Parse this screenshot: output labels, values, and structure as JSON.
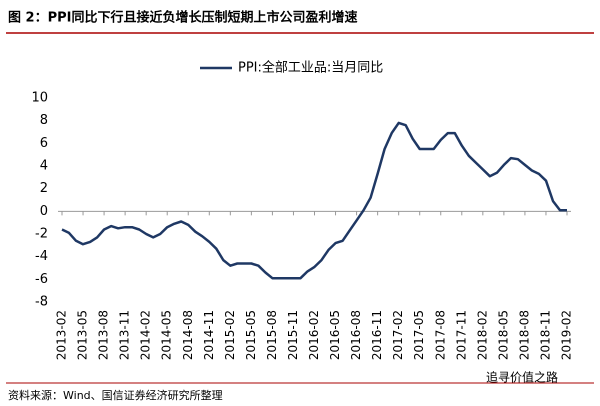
{
  "chart_data": {
    "type": "line",
    "title": "图 2：PPI同比下行且接近负增长压制短期上市公司盈利增速",
    "source": "资料来源：Wind、国信证券经济研究所整理",
    "watermark": "追寻价值之路",
    "categories": [
      "2013-02",
      null,
      null,
      "2013-05",
      null,
      null,
      "2013-08",
      null,
      null,
      "2013-11",
      null,
      null,
      "2014-02",
      null,
      null,
      "2014-05",
      null,
      null,
      "2014-08",
      null,
      null,
      "2014-11",
      null,
      null,
      "2015-02",
      null,
      null,
      "2015-05",
      null,
      null,
      "2015-08",
      null,
      null,
      "2015-11",
      null,
      null,
      "2016-02",
      null,
      null,
      "2016-05",
      null,
      null,
      "2016-08",
      null,
      null,
      "2016-11",
      null,
      null,
      "2017-02",
      null,
      null,
      "2017-05",
      null,
      null,
      "2017-08",
      null,
      null,
      "2017-11",
      null,
      null,
      "2018-02",
      null,
      null,
      "2018-05",
      null,
      null,
      "2018-08",
      null,
      null,
      "2018-11",
      null,
      null,
      "2019-02"
    ],
    "series": [
      {
        "name": "PPI:全部工业品:当月同比",
        "color": "#1f3864",
        "values": [
          -1.6,
          -1.9,
          -2.6,
          -2.9,
          -2.7,
          -2.3,
          -1.6,
          -1.3,
          -1.5,
          -1.4,
          -1.4,
          -1.6,
          -2.0,
          -2.3,
          -2.0,
          -1.4,
          -1.1,
          -0.9,
          -1.2,
          -1.8,
          -2.2,
          -2.7,
          -3.3,
          -4.3,
          -4.8,
          -4.6,
          -4.6,
          -4.6,
          -4.8,
          -5.4,
          -5.9,
          -5.9,
          -5.9,
          -5.9,
          -5.9,
          -5.3,
          -4.9,
          -4.3,
          -3.4,
          -2.8,
          -2.6,
          -1.7,
          -0.8,
          0.1,
          1.2,
          3.3,
          5.5,
          6.9,
          7.8,
          7.6,
          6.4,
          5.5,
          5.5,
          5.5,
          6.3,
          6.9,
          6.9,
          5.8,
          4.9,
          4.3,
          3.7,
          3.1,
          3.4,
          4.1,
          4.7,
          4.6,
          4.1,
          3.6,
          3.3,
          2.7,
          0.9,
          0.1,
          0.1
        ]
      }
    ],
    "ylim": [
      -8,
      10
    ],
    "yticks": [
      -8,
      -6,
      -4,
      -2,
      0,
      2,
      4,
      6,
      8,
      10
    ],
    "grid": false
  }
}
